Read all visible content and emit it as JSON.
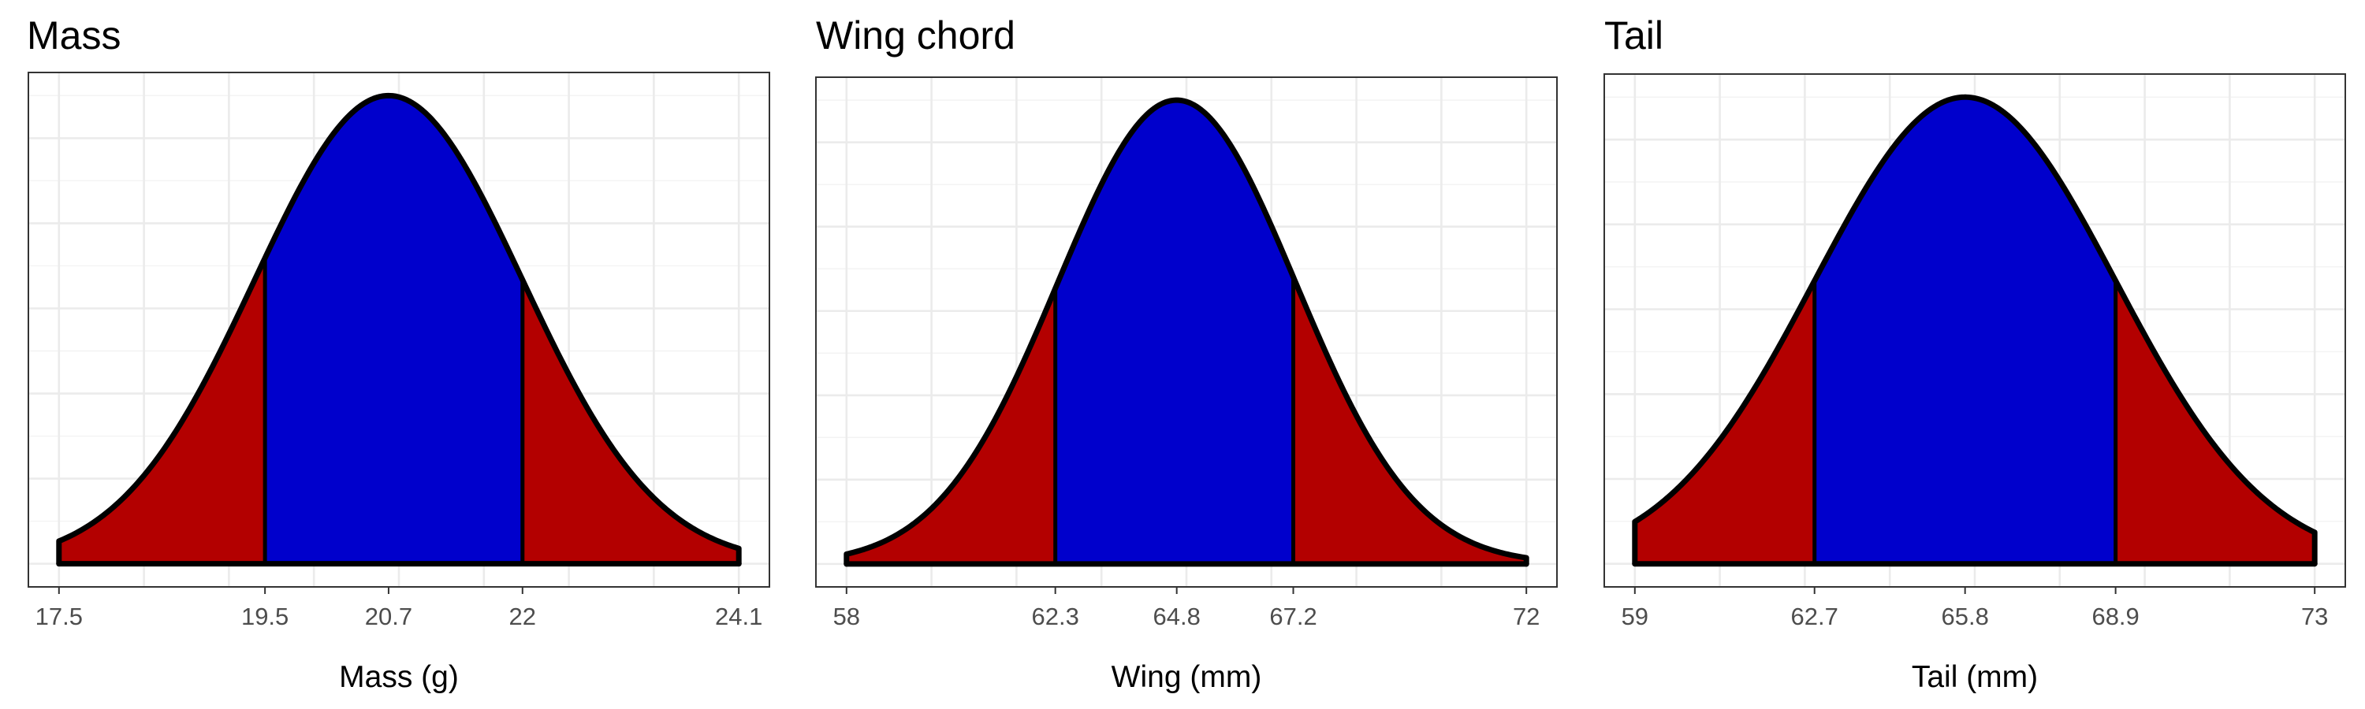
{
  "colors": {
    "tail": "#b30000",
    "center": "#0000cc",
    "outline": "#000000",
    "background": "#ffffff"
  },
  "chart_data": [
    {
      "type": "area",
      "title": "Mass",
      "xlabel": "Mass (g)",
      "ylabel": "",
      "distribution": "normal",
      "mean": 20.7,
      "sd": 1.3,
      "xlim": [
        17.5,
        24.1
      ],
      "shaded_interval": [
        19.5,
        22
      ],
      "xticks": [
        17.5,
        19.5,
        20.7,
        22,
        24.1
      ],
      "xtick_labels": [
        "17.5",
        "19.5",
        "20.7",
        "22",
        "24.1"
      ],
      "regions": [
        {
          "name": "lower tail",
          "from": 17.5,
          "to": 19.5,
          "color": "#b30000"
        },
        {
          "name": "center",
          "from": 19.5,
          "to": 22,
          "color": "#0000cc"
        },
        {
          "name": "upper tail",
          "from": 22,
          "to": 24.1,
          "color": "#b30000"
        }
      ],
      "y_tick_labels_shown": false,
      "grid": true
    },
    {
      "type": "area",
      "title": "Wing chord",
      "xlabel": "Wing (mm)",
      "ylabel": "",
      "distribution": "normal",
      "mean": 64.8,
      "sd": 2.45,
      "xlim": [
        58,
        72
      ],
      "shaded_interval": [
        62.3,
        67.2
      ],
      "xticks": [
        58,
        62.3,
        64.8,
        67.2,
        72
      ],
      "xtick_labels": [
        "58",
        "62.3",
        "64.8",
        "67.2",
        "72"
      ],
      "regions": [
        {
          "name": "lower tail",
          "from": 58,
          "to": 62.3,
          "color": "#b30000"
        },
        {
          "name": "center",
          "from": 62.3,
          "to": 67.2,
          "color": "#0000cc"
        },
        {
          "name": "upper tail",
          "from": 67.2,
          "to": 72,
          "color": "#b30000"
        }
      ],
      "y_tick_labels_shown": false,
      "grid": true
    },
    {
      "type": "area",
      "title": "Tail",
      "xlabel": "Tail (mm)",
      "ylabel": "",
      "distribution": "normal",
      "mean": 65.8,
      "sd": 3.1,
      "xlim": [
        59,
        73
      ],
      "shaded_interval": [
        62.7,
        68.9
      ],
      "xticks": [
        59,
        62.7,
        65.8,
        68.9,
        73
      ],
      "xtick_labels": [
        "59",
        "62.7",
        "65.8",
        "68.9",
        "73"
      ],
      "regions": [
        {
          "name": "lower tail",
          "from": 59,
          "to": 62.7,
          "color": "#b30000"
        },
        {
          "name": "center",
          "from": 62.7,
          "to": 68.9,
          "color": "#0000cc"
        },
        {
          "name": "upper tail",
          "from": 68.9,
          "to": 73,
          "color": "#b30000"
        }
      ],
      "y_tick_labels_shown": false,
      "grid": true
    }
  ]
}
